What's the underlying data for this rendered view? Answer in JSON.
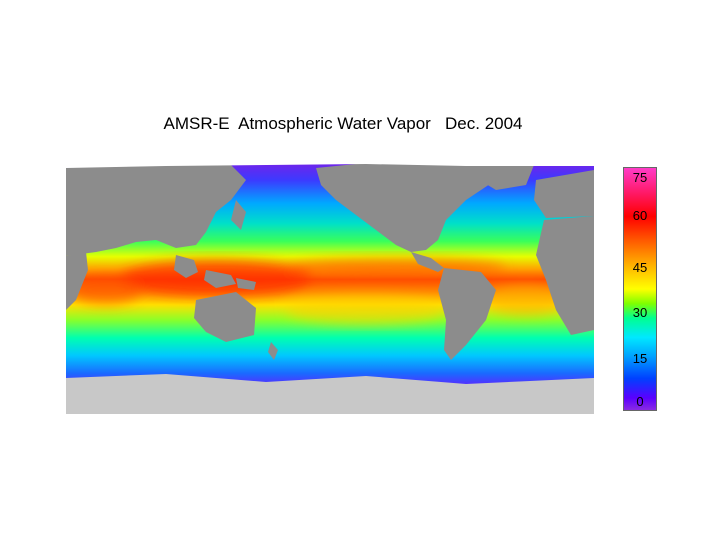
{
  "figure": {
    "title": "AMSR-E  Atmospheric Water Vapor   Dec. 2004"
  },
  "colorbar": {
    "ticks": [
      "75",
      "60",
      "45",
      "30",
      "15",
      "0"
    ],
    "range": [
      0,
      75
    ]
  },
  "colors": {
    "land": "#8c8c8c",
    "ice": "#c8c8c8",
    "background": "#ffffff"
  }
}
